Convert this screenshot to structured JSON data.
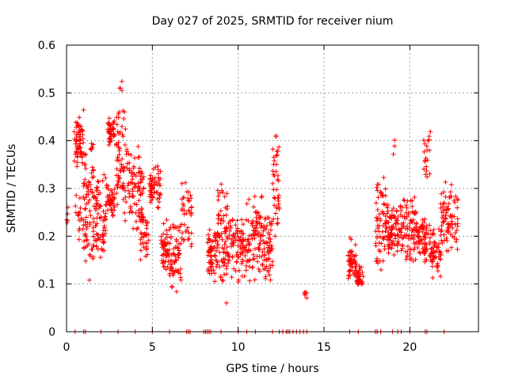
{
  "chart_data": {
    "type": "scatter",
    "title": "Day 027 of 2025, SRMTID for receiver nium",
    "xlabel": "GPS time / hours",
    "ylabel": "SRMTID / TECUs",
    "xlim": [
      0,
      24
    ],
    "ylim": [
      0,
      0.6
    ],
    "xticks": [
      0,
      5,
      10,
      15,
      20
    ],
    "yticks": [
      0,
      0.1,
      0.2,
      0.3,
      0.4,
      0.5,
      0.6
    ],
    "xtick_labels": [
      "0",
      "5",
      "10",
      "15",
      "20"
    ],
    "ytick_labels": [
      "0",
      "0.1",
      "0.2",
      "0.3",
      "0.4",
      "0.5",
      "0.6"
    ],
    "grid": true,
    "marker": "+",
    "color": "#ff0000",
    "clusters": [
      {
        "t0": 0.0,
        "t1": 0.1,
        "lo": 0.22,
        "hi": 0.27,
        "n": 5
      },
      {
        "t0": 0.45,
        "t1": 1.0,
        "lo": 0.34,
        "hi": 0.47,
        "n": 60
      },
      {
        "t0": 0.5,
        "t1": 1.0,
        "lo": 0.18,
        "hi": 0.3,
        "n": 20
      },
      {
        "t0": 1.0,
        "t1": 1.6,
        "lo": 0.1,
        "hi": 0.42,
        "n": 80
      },
      {
        "t0": 1.6,
        "t1": 2.3,
        "lo": 0.14,
        "hi": 0.33,
        "n": 70
      },
      {
        "t0": 2.3,
        "t1": 2.8,
        "lo": 0.24,
        "hi": 0.31,
        "n": 40
      },
      {
        "t0": 2.4,
        "t1": 2.8,
        "lo": 0.38,
        "hi": 0.46,
        "n": 40
      },
      {
        "t0": 2.9,
        "t1": 3.6,
        "lo": 0.22,
        "hi": 0.48,
        "n": 70
      },
      {
        "t0": 3.1,
        "t1": 3.3,
        "lo": 0.5,
        "hi": 0.53,
        "n": 4
      },
      {
        "t0": 3.6,
        "t1": 4.5,
        "lo": 0.2,
        "hi": 0.4,
        "n": 80
      },
      {
        "t0": 4.3,
        "t1": 4.8,
        "lo": 0.13,
        "hi": 0.28,
        "n": 40
      },
      {
        "t0": 4.8,
        "t1": 5.5,
        "lo": 0.25,
        "hi": 0.35,
        "n": 60
      },
      {
        "t0": 5.5,
        "t1": 6.0,
        "lo": 0.1,
        "hi": 0.24,
        "n": 50
      },
      {
        "t0": 6.0,
        "t1": 6.7,
        "lo": 0.08,
        "hi": 0.24,
        "n": 60
      },
      {
        "t0": 6.7,
        "t1": 7.3,
        "lo": 0.17,
        "hi": 0.32,
        "n": 40
      },
      {
        "t0": 8.2,
        "t1": 8.8,
        "lo": 0.1,
        "hi": 0.23,
        "n": 60
      },
      {
        "t0": 8.8,
        "t1": 9.4,
        "lo": 0.05,
        "hi": 0.33,
        "n": 70
      },
      {
        "t0": 9.4,
        "t1": 10.4,
        "lo": 0.1,
        "hi": 0.26,
        "n": 80
      },
      {
        "t0": 10.4,
        "t1": 11.4,
        "lo": 0.1,
        "hi": 0.3,
        "n": 90
      },
      {
        "t0": 11.4,
        "t1": 12.0,
        "lo": 0.09,
        "hi": 0.26,
        "n": 60
      },
      {
        "t0": 12.0,
        "t1": 12.4,
        "lo": 0.18,
        "hi": 0.44,
        "n": 40
      },
      {
        "t0": 13.8,
        "t1": 14.0,
        "lo": 0.07,
        "hi": 0.09,
        "n": 6
      },
      {
        "t0": 16.4,
        "t1": 16.9,
        "lo": 0.09,
        "hi": 0.2,
        "n": 50
      },
      {
        "t0": 16.9,
        "t1": 17.3,
        "lo": 0.09,
        "hi": 0.14,
        "n": 30
      },
      {
        "t0": 18.0,
        "t1": 18.6,
        "lo": 0.1,
        "hi": 0.33,
        "n": 60
      },
      {
        "t0": 18.6,
        "t1": 19.4,
        "lo": 0.15,
        "hi": 0.28,
        "n": 80
      },
      {
        "t0": 19.0,
        "t1": 19.2,
        "lo": 0.37,
        "hi": 0.41,
        "n": 3
      },
      {
        "t0": 19.4,
        "t1": 20.4,
        "lo": 0.14,
        "hi": 0.3,
        "n": 90
      },
      {
        "t0": 20.4,
        "t1": 21.2,
        "lo": 0.14,
        "hi": 0.26,
        "n": 70
      },
      {
        "t0": 20.8,
        "t1": 21.2,
        "lo": 0.3,
        "hi": 0.43,
        "n": 20
      },
      {
        "t0": 21.2,
        "t1": 21.8,
        "lo": 0.1,
        "hi": 0.22,
        "n": 50
      },
      {
        "t0": 21.8,
        "t1": 22.8,
        "lo": 0.15,
        "hi": 0.32,
        "n": 80
      }
    ],
    "zero_marks": [
      0.5,
      1.0,
      1.1,
      2.0,
      3.0,
      4.0,
      5.0,
      6.0,
      7.0,
      7.1,
      7.2,
      8.0,
      8.1,
      8.2,
      8.3,
      8.4,
      9.0,
      10.0,
      10.5,
      11.0,
      12.0,
      12.4,
      12.6,
      12.8,
      12.9,
      13.0,
      13.2,
      13.4,
      13.6,
      13.8,
      14.0,
      16.5,
      17.0,
      18.0,
      18.1,
      18.3,
      19.0,
      19.3,
      19.5,
      20.0,
      20.9,
      21.0,
      22.0
    ]
  }
}
